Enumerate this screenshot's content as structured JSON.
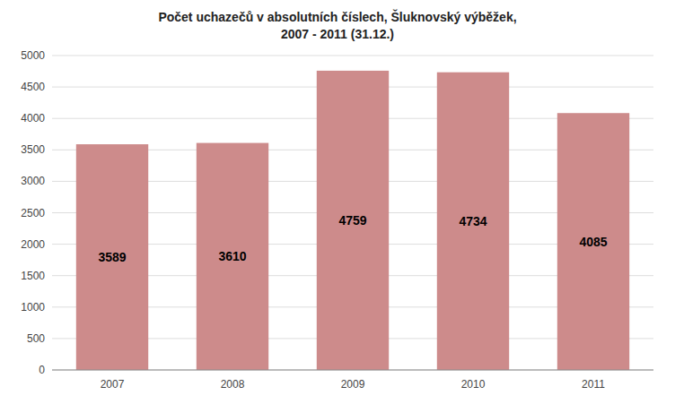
{
  "chart_data": {
    "type": "bar",
    "title": "Počet uchazečů v absolutních číslech, Šluknovský výběžek,\n2007 - 2011 (31.12.)",
    "categories": [
      "2007",
      "2008",
      "2009",
      "2010",
      "2011"
    ],
    "values": [
      3589,
      3610,
      4759,
      4734,
      4085
    ],
    "color": "#cd8b8b",
    "ylim": [
      0,
      5000
    ],
    "yticks": [
      0,
      500,
      1000,
      1500,
      2000,
      2500,
      3000,
      3500,
      4000,
      4500,
      5000
    ],
    "grid": true,
    "data_labels": true
  }
}
